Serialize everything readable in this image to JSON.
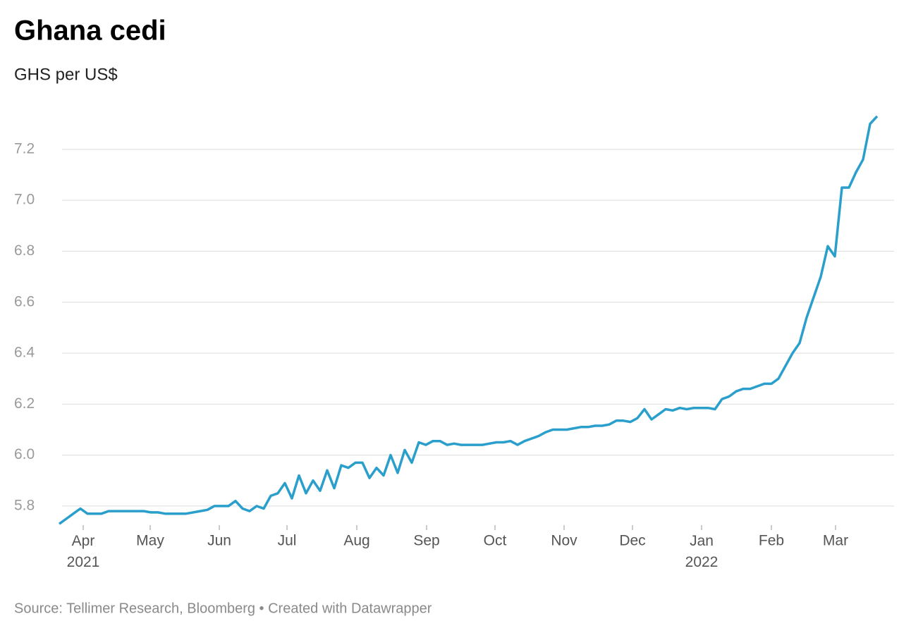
{
  "chart_data": {
    "type": "line",
    "title": "Ghana cedi",
    "subtitle": "GHS per US$",
    "source": "Source: Tellimer Research, Bloomberg • Created with Datawrapper",
    "series": [
      {
        "name": "GHS per US$",
        "color": "#2a9fcb",
        "values": [
          5.73,
          5.75,
          5.77,
          5.79,
          5.77,
          5.77,
          5.77,
          5.78,
          5.78,
          5.78,
          5.78,
          5.78,
          5.78,
          5.775,
          5.775,
          5.77,
          5.77,
          5.77,
          5.77,
          5.775,
          5.78,
          5.785,
          5.8,
          5.8,
          5.8,
          5.82,
          5.79,
          5.78,
          5.8,
          5.79,
          5.84,
          5.85,
          5.89,
          5.83,
          5.92,
          5.85,
          5.9,
          5.86,
          5.94,
          5.87,
          5.96,
          5.95,
          5.97,
          5.97,
          5.91,
          5.95,
          5.92,
          6.0,
          5.93,
          6.02,
          5.97,
          6.05,
          6.04,
          6.055,
          6.055,
          6.04,
          6.045,
          6.04,
          6.04,
          6.04,
          6.04,
          6.045,
          6.05,
          6.05,
          6.055,
          6.04,
          6.055,
          6.065,
          6.075,
          6.09,
          6.1,
          6.1,
          6.1,
          6.105,
          6.11,
          6.11,
          6.115,
          6.115,
          6.12,
          6.135,
          6.135,
          6.13,
          6.145,
          6.18,
          6.14,
          6.16,
          6.18,
          6.175,
          6.185,
          6.18,
          6.185,
          6.185,
          6.185,
          6.18,
          6.22,
          6.23,
          6.25,
          6.26,
          6.26,
          6.27,
          6.28,
          6.28,
          6.3,
          6.35,
          6.4,
          6.44,
          6.54,
          6.62,
          6.7,
          6.82,
          6.78,
          7.05,
          7.05,
          7.11,
          7.16,
          7.3,
          7.33
        ]
      }
    ],
    "xlim": [
      0,
      116
    ],
    "xticks": [
      {
        "value": 3.4,
        "label": "Apr 2021"
      },
      {
        "value": 12.9,
        "label": "May"
      },
      {
        "value": 22.7,
        "label": "Jun"
      },
      {
        "value": 32.3,
        "label": "Jul"
      },
      {
        "value": 42.2,
        "label": "Aug"
      },
      {
        "value": 52.1,
        "label": "Sep"
      },
      {
        "value": 61.8,
        "label": "Oct"
      },
      {
        "value": 71.6,
        "label": "Nov"
      },
      {
        "value": 81.3,
        "label": "Dec"
      },
      {
        "value": 91.1,
        "label": "Jan 2022"
      },
      {
        "value": 101,
        "label": "Feb"
      },
      {
        "value": 110.1,
        "label": "Mar"
      }
    ],
    "ylim": [
      5.725,
      7.37
    ],
    "yticks": [
      5.8,
      {
        "value": 6,
        "label": "6.0"
      },
      6.2,
      6.4,
      6.6,
      6.8,
      {
        "value": 7,
        "label": "7.0"
      },
      7.2
    ],
    "grid": true
  }
}
